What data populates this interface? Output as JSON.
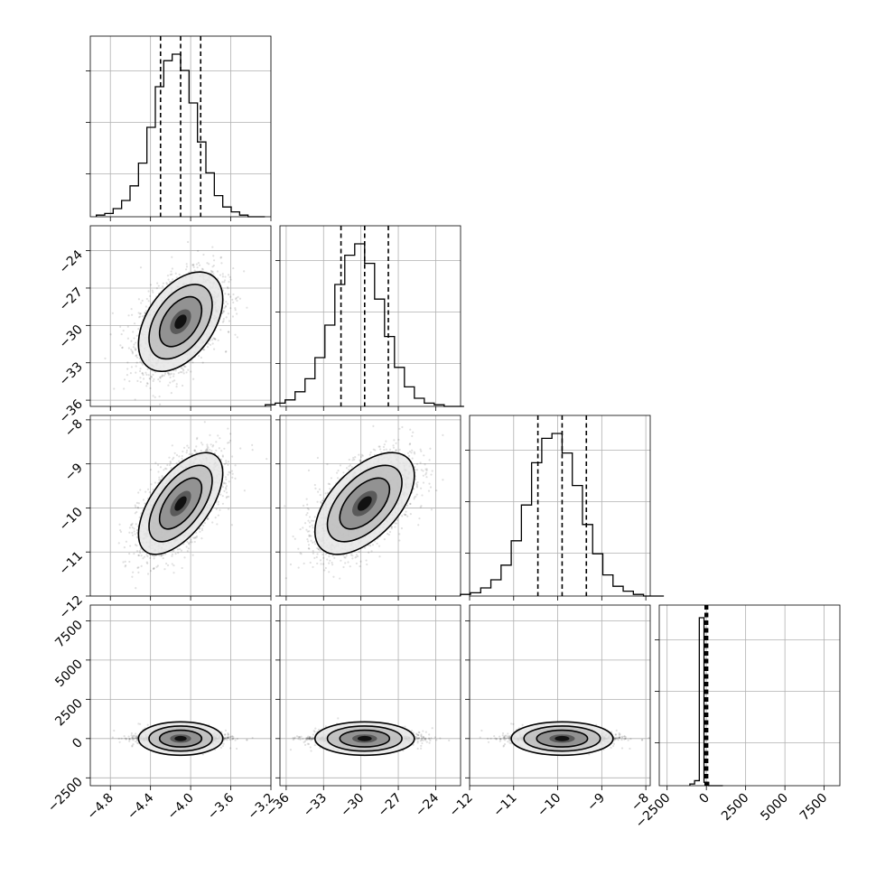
{
  "chart_data": {
    "type": "corner",
    "parameters": [
      {
        "mean": -4.1,
        "sd": 0.2,
        "range": [
          -5.0,
          -3.2
        ],
        "ticks": [
          -4.8,
          -4.4,
          -4.0,
          -3.6,
          -3.2
        ],
        "tick_labels": [
          "−4.8",
          "−4.4",
          "−4.0",
          "−3.6",
          "−3.2"
        ],
        "quantiles": [
          -4.3,
          -4.1,
          -3.9
        ]
      },
      {
        "mean": -29.7,
        "sd": 1.9,
        "range": [
          -36.5,
          -22.0
        ],
        "ticks": [
          -36,
          -33,
          -30,
          -27,
          -24
        ],
        "tick_labels": [
          "−36",
          "−33",
          "−30",
          "−27",
          "−24"
        ],
        "quantiles": [
          -31.6,
          -29.7,
          -27.8
        ]
      },
      {
        "mean": -9.9,
        "sd": 0.55,
        "range": [
          -12.0,
          -7.9
        ],
        "ticks": [
          -12,
          -11,
          -10,
          -9,
          -8
        ],
        "tick_labels": [
          "−12",
          "−11",
          "−10",
          "−9",
          "−8"
        ],
        "quantiles": [
          -10.45,
          -9.9,
          -9.35
        ]
      },
      {
        "mean": 0,
        "sd": 150,
        "range": [
          -3000,
          8500
        ],
        "ticks": [
          -2500,
          0,
          2500,
          5000,
          7500
        ],
        "tick_labels": [
          "−2500",
          "0",
          "2500",
          "5000",
          "7500"
        ],
        "quantiles": [
          -80,
          0,
          80
        ]
      }
    ],
    "correlations": [
      {
        "pair": [
          0,
          1
        ],
        "rho": 0.45
      },
      {
        "pair": [
          0,
          2
        ],
        "rho": 0.6
      },
      {
        "pair": [
          1,
          2
        ],
        "rho": 0.55
      },
      {
        "pair": [
          0,
          3
        ],
        "rho": 0.0
      },
      {
        "pair": [
          1,
          3
        ],
        "rho": 0.0
      },
      {
        "pair": [
          2,
          3
        ],
        "rho": 0.0
      }
    ],
    "histograms": [
      {
        "param": 0,
        "bins": 20,
        "counts": [
          0.01,
          0.02,
          0.05,
          0.1,
          0.19,
          0.33,
          0.55,
          0.8,
          0.96,
          1.0,
          0.9,
          0.7,
          0.46,
          0.27,
          0.13,
          0.06,
          0.03,
          0.01,
          0.0,
          0.0
        ]
      },
      {
        "param": 1,
        "bins": 20,
        "counts": [
          0.01,
          0.02,
          0.04,
          0.09,
          0.17,
          0.3,
          0.5,
          0.75,
          0.93,
          1.0,
          0.88,
          0.66,
          0.43,
          0.24,
          0.12,
          0.05,
          0.02,
          0.01,
          0.0,
          0.0
        ]
      },
      {
        "param": 2,
        "bins": 20,
        "counts": [
          0.01,
          0.02,
          0.05,
          0.1,
          0.19,
          0.34,
          0.56,
          0.82,
          0.97,
          1.0,
          0.88,
          0.68,
          0.44,
          0.26,
          0.13,
          0.06,
          0.03,
          0.01,
          0.0,
          0.0
        ]
      },
      {
        "param": 3,
        "bins": 20,
        "counts": [
          0.0,
          0.0,
          0.0,
          0.01,
          0.03,
          1.0,
          0.03,
          0.01,
          0.0,
          0.0,
          0.0,
          0.0,
          0.0,
          0.0,
          0.0,
          0.0,
          0.0,
          0.0,
          0.0,
          0.0
        ]
      }
    ],
    "contour_levels_sigma": [
      0.5,
      1.0,
      1.5,
      2.0
    ],
    "grid": true,
    "xlabel": "",
    "ylabel": "",
    "title": ""
  }
}
